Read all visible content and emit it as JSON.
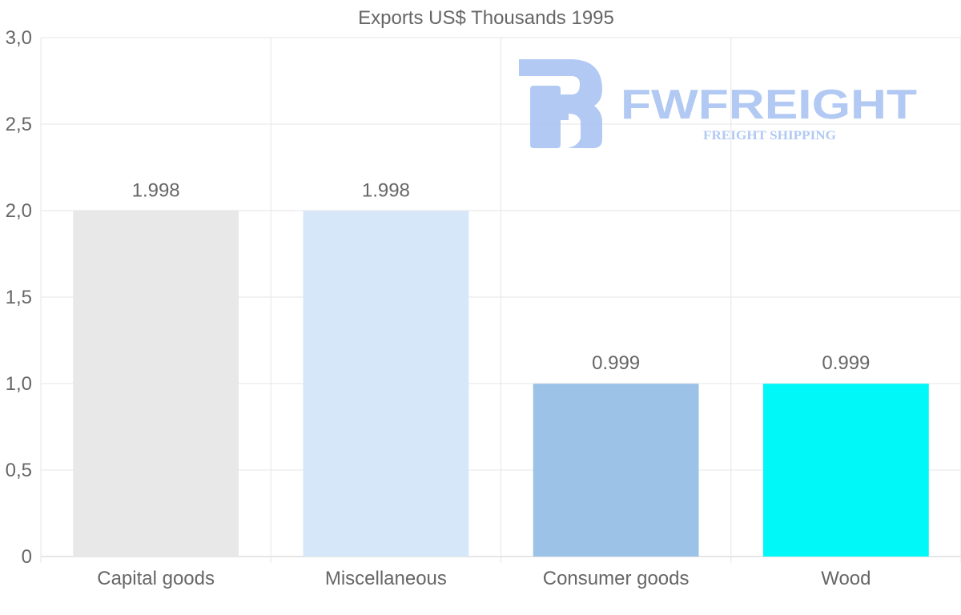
{
  "chart_data": {
    "type": "bar",
    "title": "Exports US$ Thousands 1995",
    "categories": [
      "Capital goods",
      "Miscellaneous",
      "Consumer goods",
      "Wood"
    ],
    "values": [
      1.998,
      1.998,
      0.999,
      0.999
    ],
    "value_labels": [
      "1.998",
      "1.998",
      "0.999",
      "0.999"
    ],
    "colors": [
      "#e8e8e8",
      "#d6e7f9",
      "#9cc3e7",
      "#00f8f8"
    ],
    "xlabel": "",
    "ylabel": "",
    "ylim": [
      0,
      3.0
    ],
    "yticks": [
      {
        "value": 0,
        "label": "0"
      },
      {
        "value": 0.5,
        "label": "0,5"
      },
      {
        "value": 1.0,
        "label": "1,0"
      },
      {
        "value": 1.5,
        "label": "1,5"
      },
      {
        "value": 2.0,
        "label": "2,0"
      },
      {
        "value": 2.5,
        "label": "2,5"
      },
      {
        "value": 3.0,
        "label": "3,0"
      }
    ],
    "grid": true,
    "legend": "none"
  },
  "watermark": {
    "brand": "FWFREIGHT",
    "tagline": "FREIGHT SHIPPING",
    "color": "#a9c4f2"
  }
}
